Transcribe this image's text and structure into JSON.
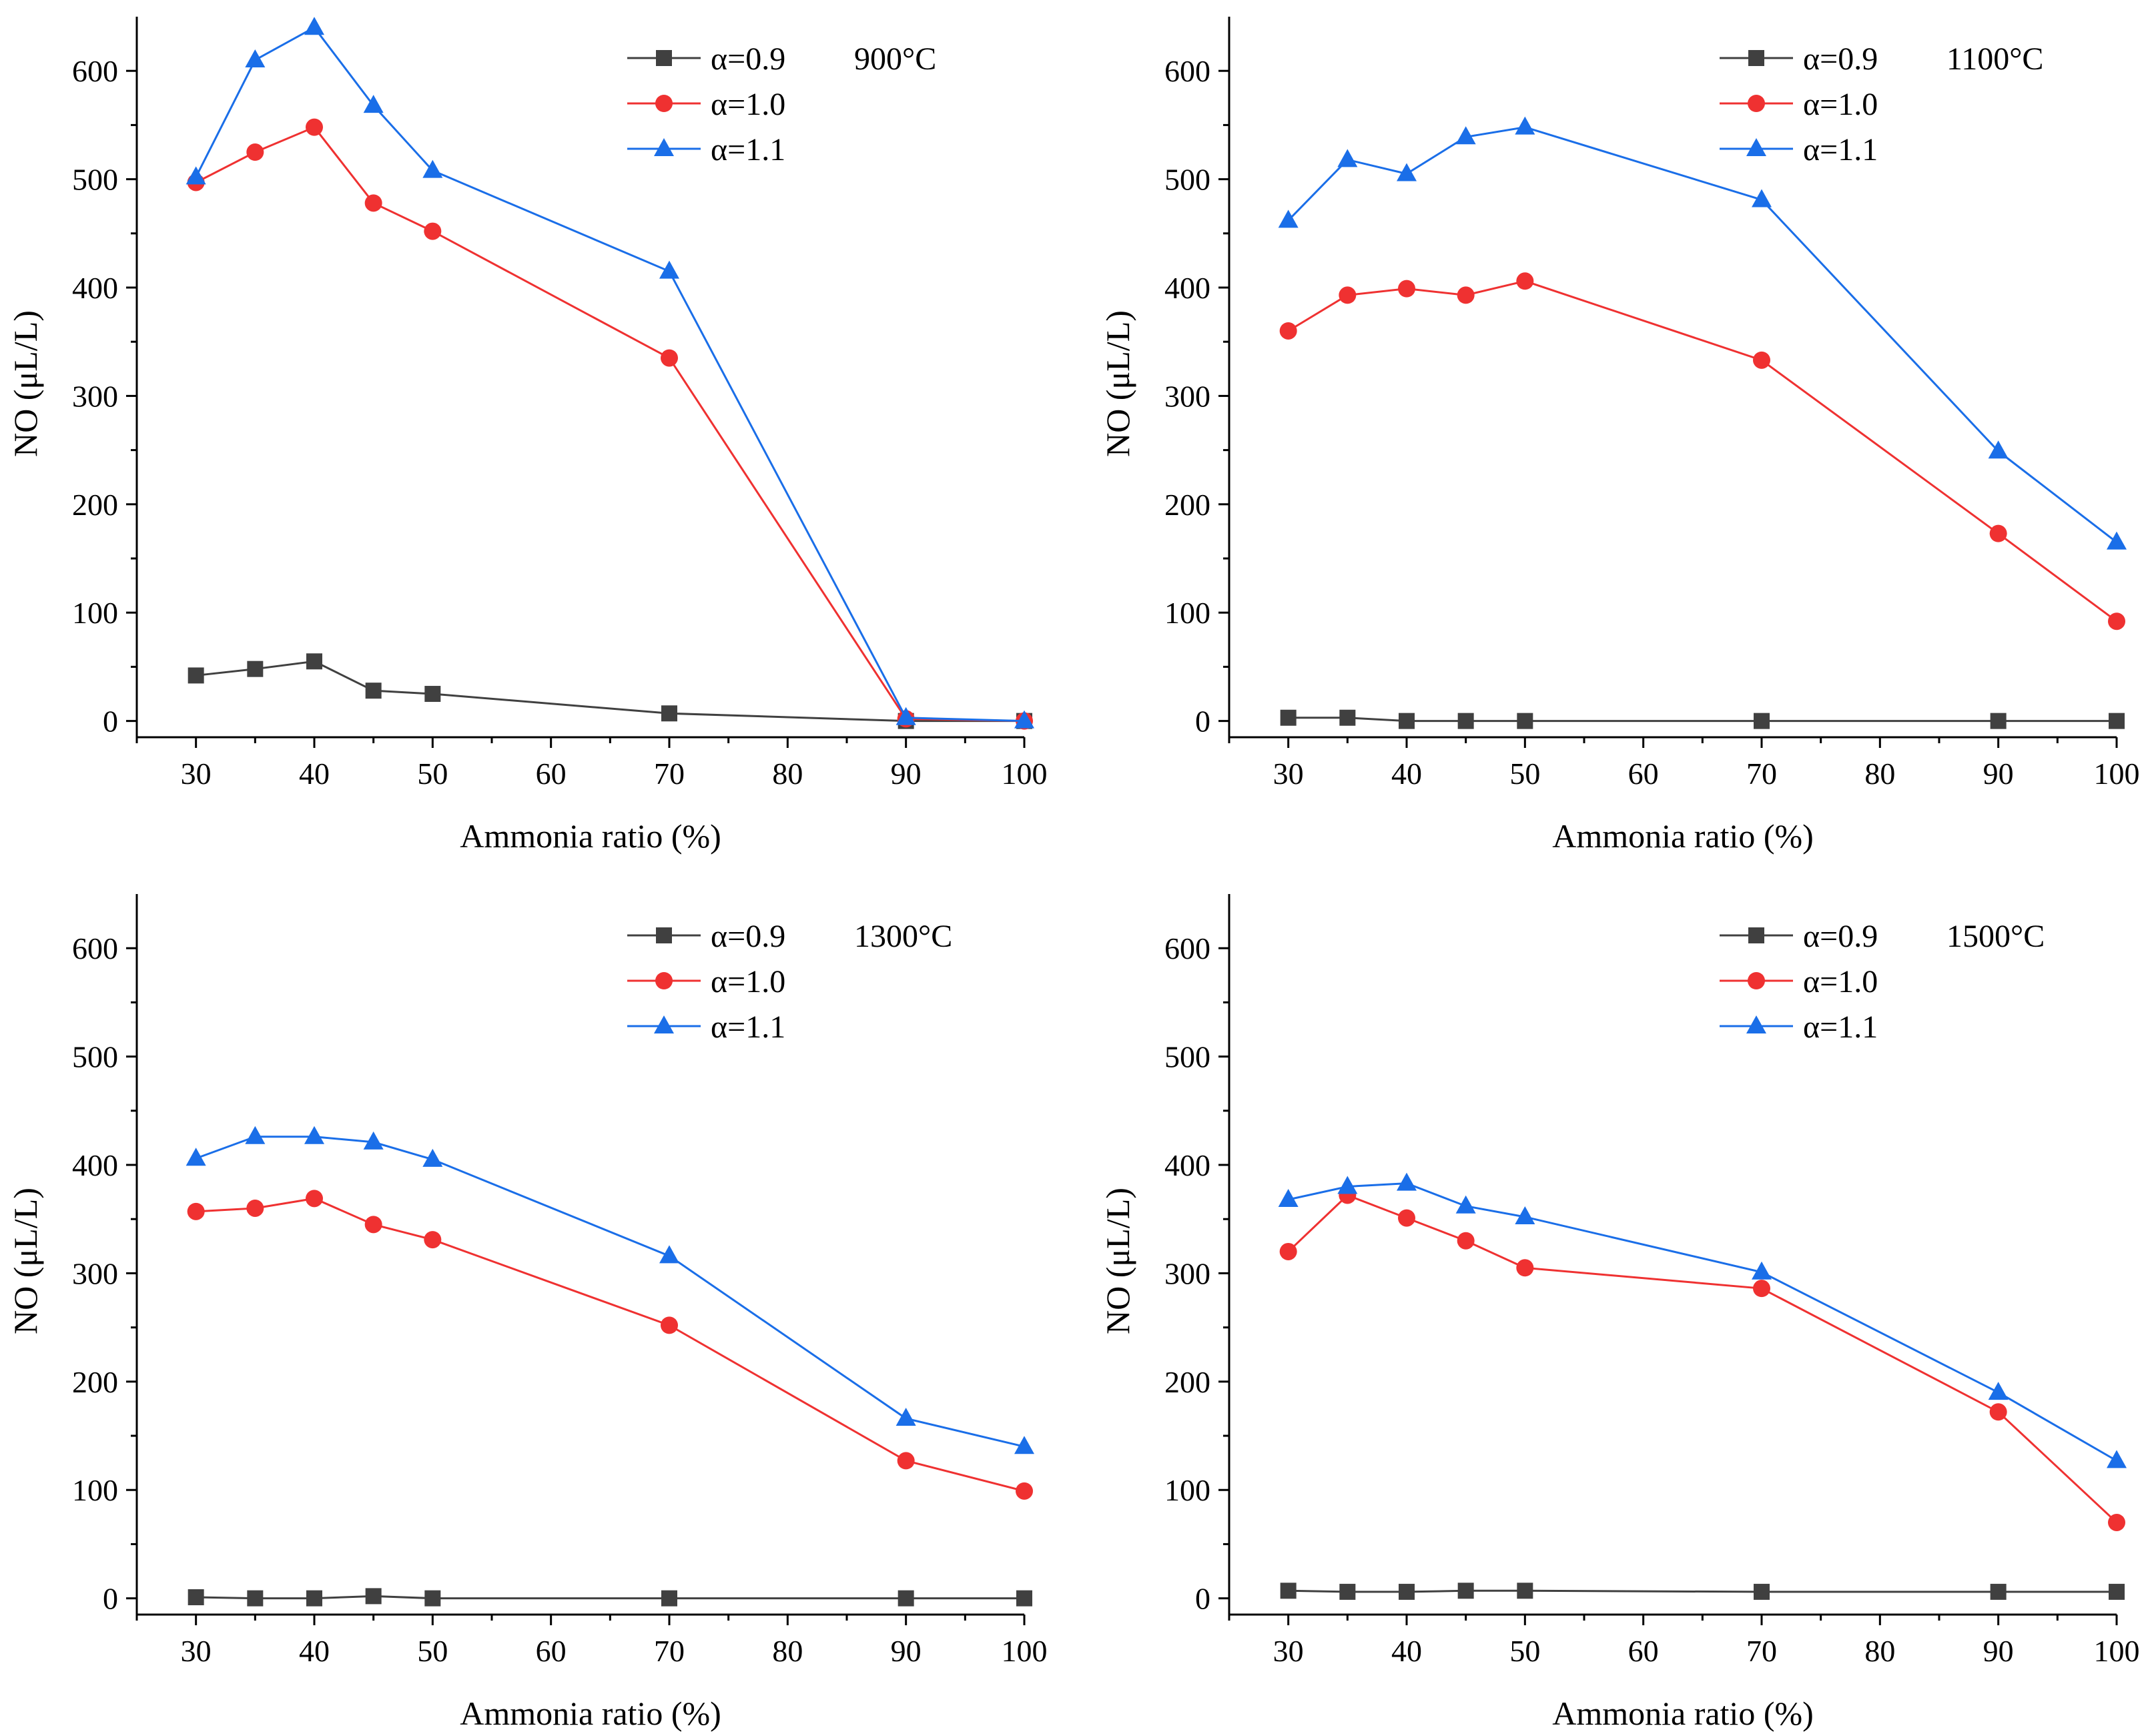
{
  "colors": {
    "alpha_09": "#404040",
    "alpha_10": "#ef3131",
    "alpha_11": "#1a6ee8",
    "axis": "#000000"
  },
  "chart_data": [
    {
      "type": "line",
      "title": "900°C",
      "xlabel": "Ammonia ratio (%)",
      "ylabel": "NO (μL/L)",
      "xlim": [
        25,
        100
      ],
      "ylim": [
        -15,
        650
      ],
      "xticks": [
        30,
        40,
        50,
        60,
        70,
        80,
        90,
        100
      ],
      "yticks": [
        0,
        100,
        200,
        300,
        400,
        500,
        600
      ],
      "legend_position": "top-right",
      "x": [
        30,
        35,
        40,
        45,
        50,
        70,
        90,
        100
      ],
      "series": [
        {
          "name": "α=0.9",
          "marker": "square",
          "values": [
            42,
            48,
            55,
            28,
            25,
            7,
            0,
            0
          ]
        },
        {
          "name": "α=1.0",
          "marker": "circle",
          "values": [
            497,
            525,
            548,
            478,
            452,
            335,
            2,
            0
          ]
        },
        {
          "name": "α=1.1",
          "marker": "triangle",
          "values": [
            502,
            610,
            640,
            568,
            508,
            415,
            3,
            0
          ]
        }
      ]
    },
    {
      "type": "line",
      "title": "1100°C",
      "xlabel": "Ammonia ratio (%)",
      "ylabel": "NO (μL/L)",
      "xlim": [
        25,
        100
      ],
      "ylim": [
        -15,
        650
      ],
      "xticks": [
        30,
        40,
        50,
        60,
        70,
        80,
        90,
        100
      ],
      "yticks": [
        0,
        100,
        200,
        300,
        400,
        500,
        600
      ],
      "legend_position": "top-right",
      "x": [
        30,
        35,
        40,
        45,
        50,
        70,
        90,
        100
      ],
      "series": [
        {
          "name": "α=0.9",
          "marker": "square",
          "values": [
            3,
            3,
            0,
            0,
            0,
            0,
            0,
            0
          ]
        },
        {
          "name": "α=1.0",
          "marker": "circle",
          "values": [
            360,
            393,
            399,
            393,
            406,
            333,
            173,
            92
          ]
        },
        {
          "name": "α=1.1",
          "marker": "triangle",
          "values": [
            462,
            518,
            505,
            539,
            548,
            481,
            249,
            165
          ]
        }
      ]
    },
    {
      "type": "line",
      "title": "1300°C",
      "xlabel": "Ammonia ratio (%)",
      "ylabel": "NO (μL/L)",
      "xlim": [
        25,
        100
      ],
      "ylim": [
        -15,
        650
      ],
      "xticks": [
        30,
        40,
        50,
        60,
        70,
        80,
        90,
        100
      ],
      "yticks": [
        0,
        100,
        200,
        300,
        400,
        500,
        600
      ],
      "legend_position": "top-right",
      "x": [
        30,
        35,
        40,
        45,
        50,
        70,
        90,
        100
      ],
      "series": [
        {
          "name": "α=0.9",
          "marker": "square",
          "values": [
            1,
            0,
            0,
            2,
            0,
            0,
            0,
            0
          ]
        },
        {
          "name": "α=1.0",
          "marker": "circle",
          "values": [
            357,
            360,
            369,
            345,
            331,
            252,
            127,
            99
          ]
        },
        {
          "name": "α=1.1",
          "marker": "triangle",
          "values": [
            406,
            426,
            426,
            421,
            405,
            316,
            166,
            140
          ]
        }
      ]
    },
    {
      "type": "line",
      "title": "1500°C",
      "xlabel": "Ammonia ratio (%)",
      "ylabel": "NO (μL/L)",
      "xlim": [
        25,
        100
      ],
      "ylim": [
        -15,
        650
      ],
      "xticks": [
        30,
        40,
        50,
        60,
        70,
        80,
        90,
        100
      ],
      "yticks": [
        0,
        100,
        200,
        300,
        400,
        500,
        600
      ],
      "legend_position": "top-right",
      "x": [
        30,
        35,
        40,
        45,
        50,
        70,
        90,
        100
      ],
      "series": [
        {
          "name": "α=0.9",
          "marker": "square",
          "values": [
            7,
            6,
            6,
            7,
            7,
            6,
            6,
            6
          ]
        },
        {
          "name": "α=1.0",
          "marker": "circle",
          "values": [
            320,
            372,
            351,
            330,
            305,
            286,
            172,
            70
          ]
        },
        {
          "name": "α=1.1",
          "marker": "triangle",
          "values": [
            368,
            380,
            383,
            362,
            352,
            301,
            190,
            127
          ]
        }
      ]
    }
  ]
}
